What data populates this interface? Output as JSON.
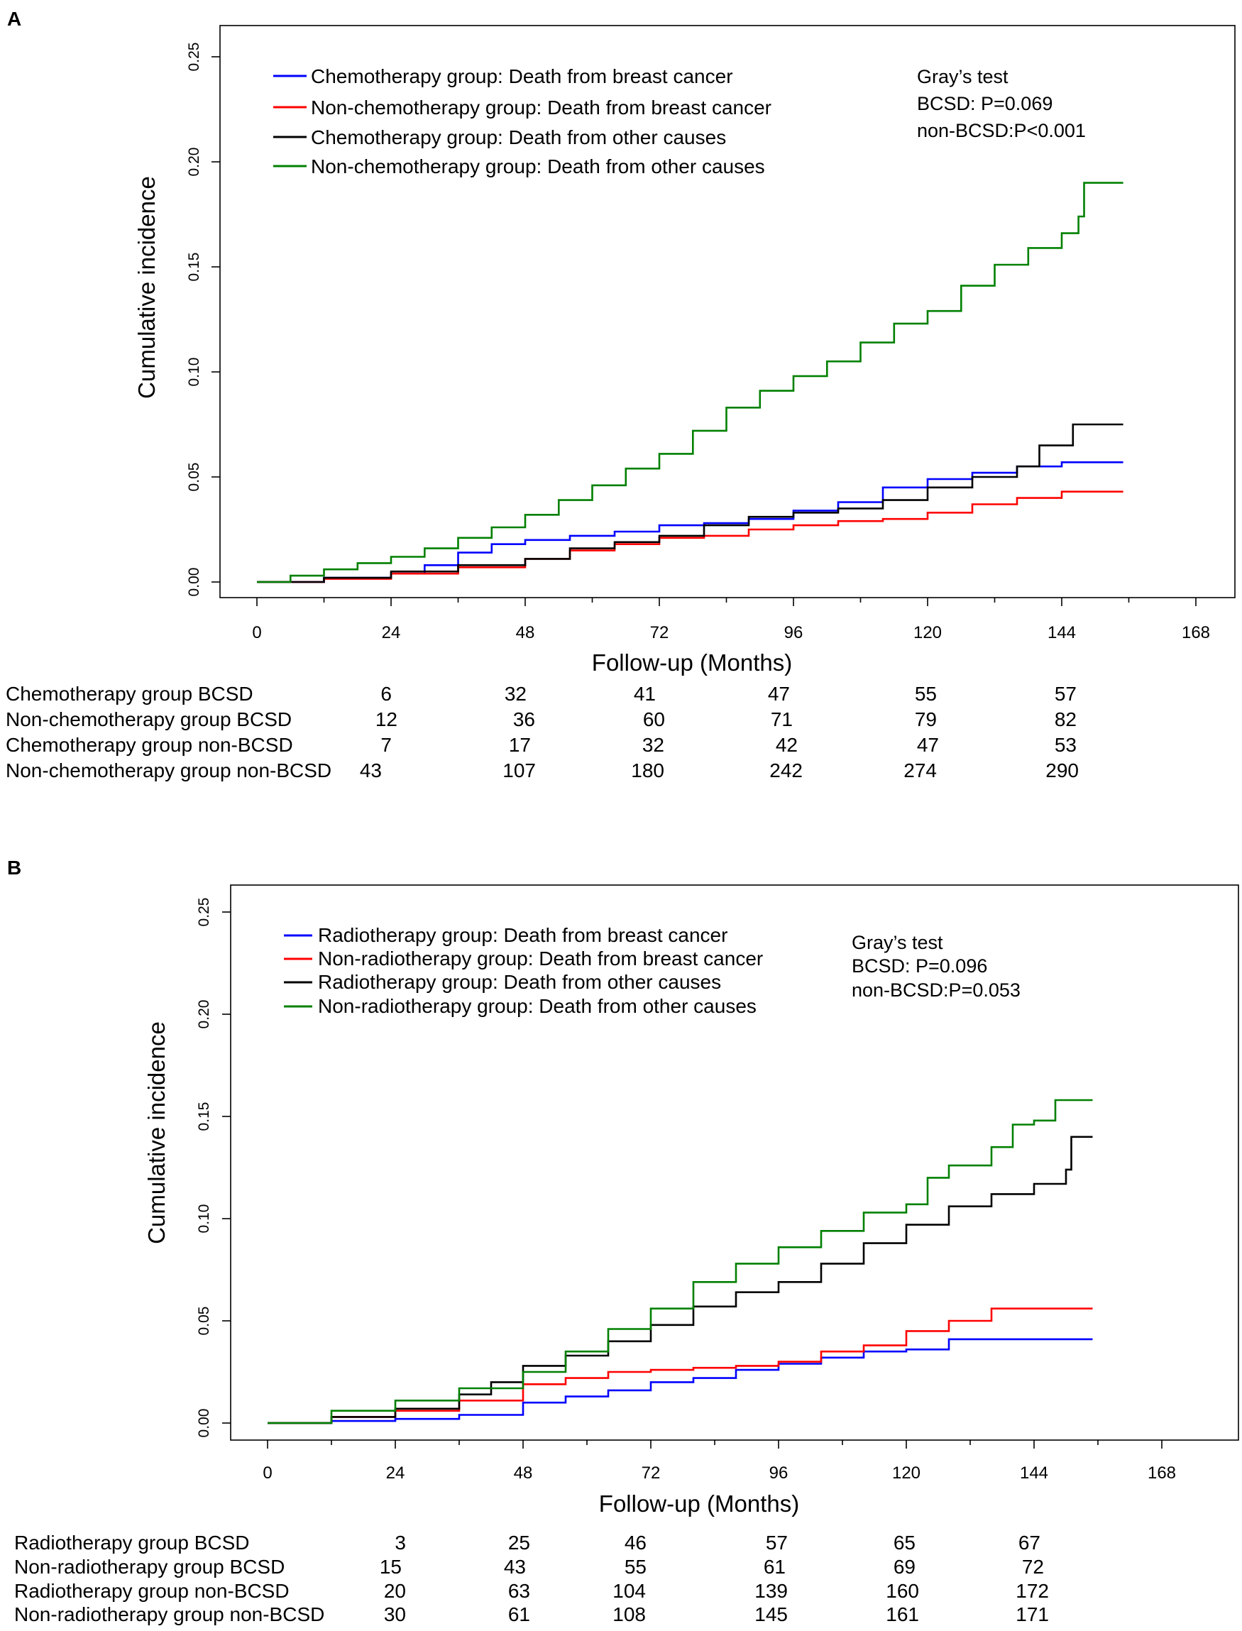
{
  "chart_data": [
    {
      "type": "line",
      "panel": "A",
      "xlabel": "Follow-up (Months)",
      "ylabel": "Cumulative incidence",
      "xlim": [
        0,
        168
      ],
      "ylim": [
        0,
        0.25
      ],
      "x_ticks": [
        "0",
        "24",
        "48",
        "72",
        "96",
        "120",
        "144",
        "168"
      ],
      "y_ticks": [
        "0.00",
        "0.05",
        "0.10",
        "0.15",
        "0.20",
        "0.25"
      ],
      "grid": false,
      "legend_position": "top-left",
      "annotation": [
        "Gray’s test",
        "BCSD: P=0.069",
        "non-BCSD:P<0.001"
      ],
      "series": [
        {
          "name": "Chemotherapy group: Death from breast cancer",
          "color": "#0000ff",
          "x": [
            0,
            12,
            24,
            30,
            36,
            42,
            48,
            56,
            64,
            72,
            80,
            88,
            96,
            104,
            112,
            120,
            128,
            136,
            144,
            155
          ],
          "y": [
            0,
            0.002,
            0.004,
            0.008,
            0.014,
            0.018,
            0.02,
            0.022,
            0.024,
            0.027,
            0.028,
            0.03,
            0.034,
            0.038,
            0.045,
            0.049,
            0.052,
            0.055,
            0.057,
            0.057
          ]
        },
        {
          "name": "Non-chemotherapy group: Death from breast cancer",
          "color": "#ff0000",
          "x": [
            0,
            12,
            24,
            36,
            48,
            56,
            64,
            72,
            80,
            88,
            96,
            104,
            112,
            120,
            128,
            136,
            144,
            155
          ],
          "y": [
            0,
            0.0015,
            0.004,
            0.007,
            0.011,
            0.015,
            0.018,
            0.021,
            0.022,
            0.025,
            0.027,
            0.029,
            0.03,
            0.033,
            0.037,
            0.04,
            0.043,
            0.043
          ]
        },
        {
          "name": "Chemotherapy group: Death from other causes",
          "color": "#000000",
          "x": [
            0,
            12,
            24,
            36,
            48,
            56,
            64,
            72,
            80,
            88,
            96,
            104,
            112,
            120,
            128,
            136,
            140,
            146,
            155
          ],
          "y": [
            0,
            0.002,
            0.005,
            0.008,
            0.011,
            0.016,
            0.019,
            0.022,
            0.027,
            0.031,
            0.033,
            0.035,
            0.039,
            0.045,
            0.05,
            0.055,
            0.065,
            0.075,
            0.075
          ]
        },
        {
          "name": "Non-chemotherapy group: Death from other causes",
          "color": "#008000",
          "x": [
            0,
            6,
            12,
            18,
            24,
            30,
            36,
            42,
            48,
            54,
            60,
            66,
            72,
            78,
            84,
            90,
            96,
            102,
            108,
            114,
            120,
            126,
            132,
            138,
            144,
            147,
            148,
            155
          ],
          "y": [
            0,
            0.003,
            0.006,
            0.009,
            0.012,
            0.016,
            0.021,
            0.026,
            0.032,
            0.039,
            0.046,
            0.054,
            0.061,
            0.072,
            0.083,
            0.091,
            0.098,
            0.105,
            0.114,
            0.123,
            0.129,
            0.141,
            0.151,
            0.159,
            0.166,
            0.174,
            0.19,
            0.19
          ]
        }
      ],
      "risk_table": {
        "rows": [
          {
            "label": "Chemotherapy group BCSD",
            "values": [
              "6",
              "32",
              "41",
              "47",
              "55",
              "57"
            ]
          },
          {
            "label": "Non-chemotherapy group BCSD",
            "values": [
              "12",
              "36",
              "60",
              "71",
              "79",
              "82"
            ]
          },
          {
            "label": "Chemotherapy group non-BCSD",
            "values": [
              "7",
              "17",
              "32",
              "42",
              "47",
              "53"
            ]
          },
          {
            "label": "Non-chemotherapy group non-BCSD",
            "values": [
              "43",
              "107",
              "180",
              "242",
              "274",
              "290"
            ]
          }
        ]
      }
    },
    {
      "type": "line",
      "panel": "B",
      "xlabel": "Follow-up (Months)",
      "ylabel": "Cumulative incidence",
      "xlim": [
        0,
        168
      ],
      "ylim": [
        0,
        0.25
      ],
      "x_ticks": [
        "0",
        "24",
        "48",
        "72",
        "96",
        "120",
        "144",
        "168"
      ],
      "y_ticks": [
        "0.00",
        "0.05",
        "0.10",
        "0.15",
        "0.20",
        "0.25"
      ],
      "grid": false,
      "legend_position": "top-left",
      "annotation": [
        "Gray’s test",
        "BCSD: P=0.096",
        "non-BCSD:P=0.053"
      ],
      "series": [
        {
          "name": "Radiotherapy group: Death from breast cancer",
          "color": "#0000ff",
          "x": [
            0,
            12,
            24,
            36,
            48,
            56,
            64,
            72,
            80,
            88,
            96,
            104,
            112,
            120,
            128,
            136,
            144,
            155
          ],
          "y": [
            0,
            0.001,
            0.002,
            0.004,
            0.01,
            0.013,
            0.016,
            0.02,
            0.022,
            0.026,
            0.029,
            0.032,
            0.035,
            0.036,
            0.041,
            0.041,
            0.041,
            0.041
          ]
        },
        {
          "name": "Non-radiotherapy group: Death from breast cancer",
          "color": "#ff0000",
          "x": [
            0,
            12,
            24,
            36,
            48,
            56,
            64,
            72,
            80,
            88,
            96,
            104,
            112,
            120,
            128,
            136,
            144,
            155
          ],
          "y": [
            0,
            0.003,
            0.006,
            0.011,
            0.019,
            0.022,
            0.025,
            0.026,
            0.027,
            0.028,
            0.03,
            0.035,
            0.038,
            0.045,
            0.05,
            0.056,
            0.056,
            0.056
          ]
        },
        {
          "name": "Radiotherapy group: Death from other causes",
          "color": "#000000",
          "x": [
            0,
            12,
            24,
            36,
            42,
            48,
            56,
            64,
            72,
            80,
            88,
            96,
            104,
            112,
            120,
            128,
            136,
            144,
            150,
            151,
            155
          ],
          "y": [
            0,
            0.003,
            0.007,
            0.014,
            0.02,
            0.028,
            0.033,
            0.04,
            0.048,
            0.057,
            0.064,
            0.069,
            0.078,
            0.088,
            0.097,
            0.106,
            0.112,
            0.117,
            0.124,
            0.14,
            0.14
          ]
        },
        {
          "name": "Non-radiotherapy group: Death from other causes",
          "color": "#008000",
          "x": [
            0,
            12,
            24,
            36,
            48,
            56,
            64,
            72,
            80,
            88,
            96,
            104,
            112,
            120,
            124,
            128,
            136,
            140,
            144,
            148,
            155
          ],
          "y": [
            0,
            0.006,
            0.011,
            0.017,
            0.025,
            0.035,
            0.046,
            0.056,
            0.069,
            0.078,
            0.086,
            0.094,
            0.103,
            0.107,
            0.12,
            0.126,
            0.135,
            0.146,
            0.148,
            0.158,
            0.158
          ]
        }
      ],
      "risk_table": {
        "rows": [
          {
            "label": "Radiotherapy group BCSD",
            "values": [
              "3",
              "25",
              "46",
              "57",
              "65",
              "67"
            ]
          },
          {
            "label": "Non-radiotherapy group BCSD",
            "values": [
              "15",
              "43",
              "55",
              "61",
              "69",
              "72"
            ]
          },
          {
            "label": "Radiotherapy group non-BCSD",
            "values": [
              "20",
              "63",
              "104",
              "139",
              "160",
              "172"
            ]
          },
          {
            "label": "Non-radiotherapy group non-BCSD",
            "values": [
              "30",
              "61",
              "108",
              "145",
              "161",
              "171"
            ]
          }
        ]
      }
    }
  ]
}
